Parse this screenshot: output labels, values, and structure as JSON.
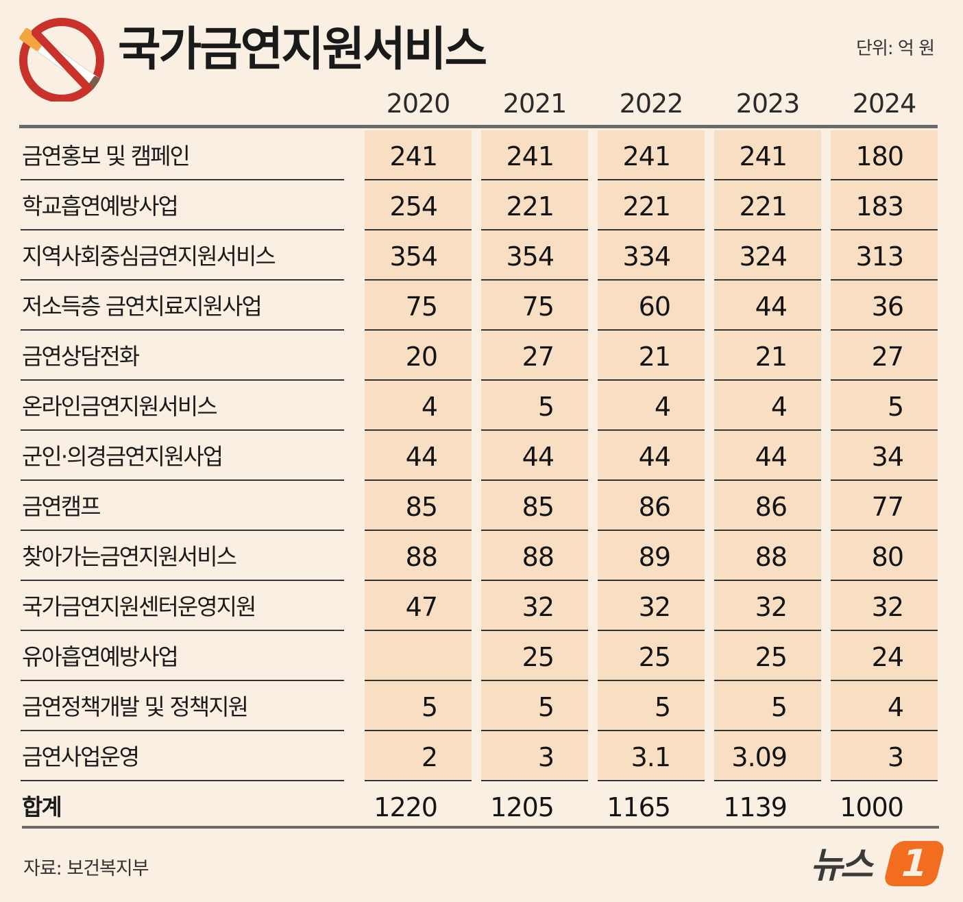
{
  "header": {
    "title": "국가금연지원서비스",
    "unit": "단위: 억 원",
    "icon": "no-smoking-icon"
  },
  "chart_data": {
    "type": "table",
    "title": "국가금연지원서비스",
    "unit": "단위: 억 원",
    "columns": [
      "2020",
      "2021",
      "2022",
      "2023",
      "2024"
    ],
    "rows": [
      {
        "label": "금연홍보 및 캠페인",
        "values": [
          "241",
          "241",
          "241",
          "241",
          "180"
        ]
      },
      {
        "label": "학교흡연예방사업",
        "values": [
          "254",
          "221",
          "221",
          "221",
          "183"
        ]
      },
      {
        "label": "지역사회중심금연지원서비스",
        "values": [
          "354",
          "354",
          "334",
          "324",
          "313"
        ]
      },
      {
        "label": "저소득층 금연치료지원사업",
        "values": [
          "75",
          "75",
          "60",
          "44",
          "36"
        ]
      },
      {
        "label": "금연상담전화",
        "values": [
          "20",
          "27",
          "21",
          "21",
          "27"
        ]
      },
      {
        "label": "온라인금연지원서비스",
        "values": [
          "4",
          "5",
          "4",
          "4",
          "5"
        ]
      },
      {
        "label": "군인·의경금연지원사업",
        "values": [
          "44",
          "44",
          "44",
          "44",
          "34"
        ]
      },
      {
        "label": "금연캠프",
        "values": [
          "85",
          "85",
          "86",
          "86",
          "77"
        ]
      },
      {
        "label": "찾아가는금연지원서비스",
        "values": [
          "88",
          "88",
          "89",
          "88",
          "80"
        ]
      },
      {
        "label": "국가금연지원센터운영지원",
        "values": [
          "47",
          "32",
          "32",
          "32",
          "32"
        ]
      },
      {
        "label": "유아흡연예방사업",
        "values": [
          "",
          "25",
          "25",
          "25",
          "24"
        ]
      },
      {
        "label": "금연정책개발 및 정책지원",
        "values": [
          "5",
          "5",
          "5",
          "5",
          "4"
        ]
      },
      {
        "label": "금연사업운영",
        "values": [
          "2",
          "3",
          "3.1",
          "3.09",
          "3"
        ]
      }
    ],
    "total": {
      "label": "합계",
      "values": [
        "1220",
        "1205",
        "1165",
        "1139",
        "1000"
      ]
    },
    "colors": {
      "background": "#faefe3",
      "column_fill": "#f8dfc4",
      "rule": "#333333"
    }
  },
  "footer": {
    "source": "자료: 보건복지부",
    "brand_text": "뉴스",
    "brand_badge": "1",
    "brand_color": "#f26d1f"
  }
}
